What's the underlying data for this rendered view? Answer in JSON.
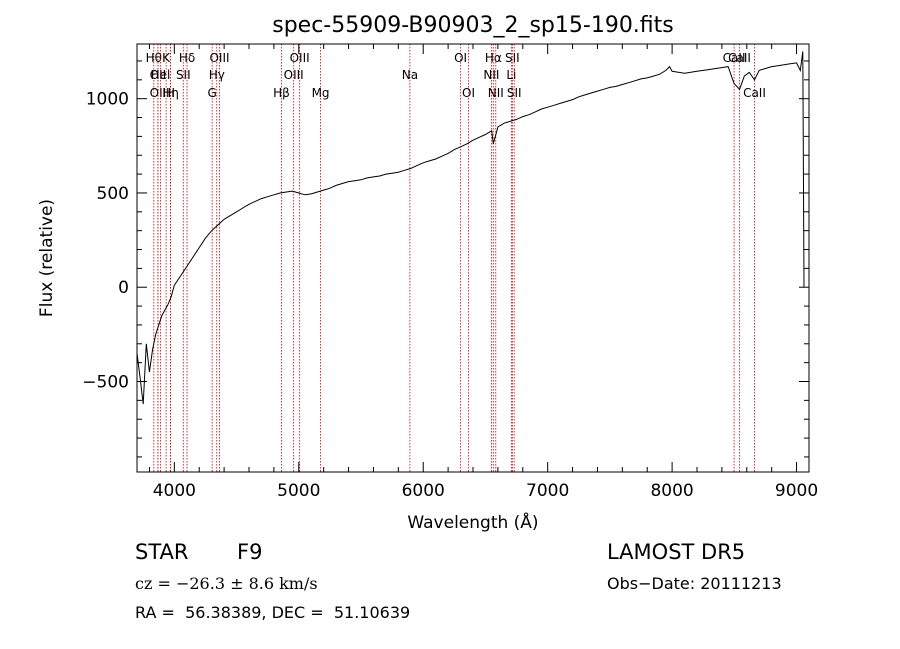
{
  "chart_data": {
    "type": "line",
    "title": "spec-55909-B90903_2_sp15-190.fits",
    "xlabel": "Wavelength (Å)",
    "ylabel": "Flux (relative)",
    "xlim": [
      3700,
      9100
    ],
    "ylim": [
      -980,
      1290
    ],
    "xticks": [
      4000,
      5000,
      6000,
      7000,
      8000,
      9000
    ],
    "yticks": [
      -500,
      0,
      500,
      1000
    ],
    "grid": false,
    "line_color": "#000000",
    "marker_color": "#cc0000",
    "series": [
      {
        "values_desc": "spectrum",
        "x": [
          3700,
          3725,
          3750,
          3775,
          3800,
          3825,
          3850,
          3875,
          3900,
          3925,
          3950,
          3975,
          4000,
          4050,
          4100,
          4150,
          4200,
          4250,
          4300,
          4350,
          4400,
          4450,
          4500,
          4550,
          4600,
          4650,
          4700,
          4750,
          4800,
          4850,
          4900,
          4950,
          5000,
          5050,
          5100,
          5150,
          5200,
          5250,
          5300,
          5350,
          5400,
          5450,
          5500,
          5550,
          5600,
          5650,
          5700,
          5750,
          5800,
          5850,
          5900,
          5950,
          6000,
          6050,
          6100,
          6150,
          6200,
          6250,
          6300,
          6350,
          6400,
          6450,
          6500,
          6550,
          6563,
          6600,
          6650,
          6700,
          6750,
          6800,
          6850,
          6900,
          6950,
          7000,
          7050,
          7100,
          7150,
          7200,
          7250,
          7300,
          7350,
          7400,
          7450,
          7500,
          7550,
          7600,
          7650,
          7700,
          7750,
          7800,
          7850,
          7900,
          7950,
          7980,
          8000,
          8050,
          8100,
          8150,
          8200,
          8250,
          8300,
          8350,
          8400,
          8450,
          8498,
          8542,
          8580,
          8620,
          8662,
          8700,
          8750,
          8800,
          8850,
          8900,
          8950,
          9000,
          9030,
          9050,
          9060
        ],
        "y": [
          -350,
          -480,
          -620,
          -300,
          -450,
          -330,
          -250,
          -200,
          -150,
          -120,
          -90,
          -50,
          10,
          60,
          110,
          160,
          210,
          260,
          300,
          330,
          360,
          380,
          400,
          420,
          440,
          455,
          470,
          480,
          490,
          500,
          505,
          510,
          500,
          490,
          495,
          505,
          515,
          525,
          540,
          550,
          560,
          565,
          570,
          580,
          585,
          590,
          600,
          605,
          610,
          620,
          630,
          645,
          660,
          670,
          680,
          695,
          710,
          730,
          745,
          760,
          780,
          795,
          810,
          830,
          760,
          850,
          870,
          880,
          890,
          905,
          915,
          930,
          945,
          955,
          965,
          975,
          985,
          995,
          1010,
          1020,
          1030,
          1040,
          1050,
          1060,
          1065,
          1075,
          1085,
          1095,
          1105,
          1110,
          1120,
          1130,
          1150,
          1170,
          1145,
          1140,
          1135,
          1140,
          1145,
          1150,
          1155,
          1160,
          1165,
          1170,
          1080,
          1050,
          1120,
          1140,
          1100,
          1150,
          1160,
          1170,
          1175,
          1180,
          1185,
          1190,
          1150,
          1250,
          0
        ]
      }
    ],
    "line_markers": [
      {
        "wave": 3835,
        "label": "Hθ",
        "row": 0
      },
      {
        "wave": 3868,
        "label": "OII",
        "row": 1
      },
      {
        "wave": 3868,
        "label": "OII",
        "row": 2
      },
      {
        "wave": 3889,
        "label": "Hel",
        "row": 1
      },
      {
        "wave": 3934,
        "label": "K",
        "row": 0
      },
      {
        "wave": 3970,
        "label": "Hη",
        "row": 2
      },
      {
        "wave": 3969,
        "label": "H",
        "row": 2
      },
      {
        "wave": 4072,
        "label": "SII",
        "row": 1
      },
      {
        "wave": 4102,
        "label": "Hδ",
        "row": 0
      },
      {
        "wave": 4304,
        "label": "G",
        "row": 2
      },
      {
        "wave": 4341,
        "label": "Hγ",
        "row": 1
      },
      {
        "wave": 4363,
        "label": "OIII",
        "row": 0
      },
      {
        "wave": 4861,
        "label": "Hβ",
        "row": 2
      },
      {
        "wave": 4959,
        "label": "OIII",
        "row": 1
      },
      {
        "wave": 5007,
        "label": "OIII",
        "row": 0
      },
      {
        "wave": 5175,
        "label": "Mg",
        "row": 2
      },
      {
        "wave": 5893,
        "label": "Na",
        "row": 1
      },
      {
        "wave": 6300,
        "label": "OI",
        "row": 0
      },
      {
        "wave": 6364,
        "label": "OI",
        "row": 2
      },
      {
        "wave": 6548,
        "label": "NII",
        "row": 1
      },
      {
        "wave": 6563,
        "label": "Hα",
        "row": 0
      },
      {
        "wave": 6583,
        "label": "NII",
        "row": 2
      },
      {
        "wave": 6708,
        "label": "Li",
        "row": 1
      },
      {
        "wave": 6716,
        "label": "SII",
        "row": 0
      },
      {
        "wave": 6731,
        "label": "SII",
        "row": 2
      },
      {
        "wave": 8498,
        "label": "CaII",
        "row": 0
      },
      {
        "wave": 8542,
        "label": "CaII",
        "row": 0
      },
      {
        "wave": 8662,
        "label": "CaII",
        "row": 2
      }
    ]
  },
  "info": {
    "class_label": "STAR",
    "subclass": "F9",
    "survey": "LAMOST DR5",
    "cz_line": "cz = −26.3 ± 8.6 km/s",
    "obs_date": "Obs−Date: 20111213",
    "coords": "RA =  56.38389, DEC =  51.10639"
  }
}
